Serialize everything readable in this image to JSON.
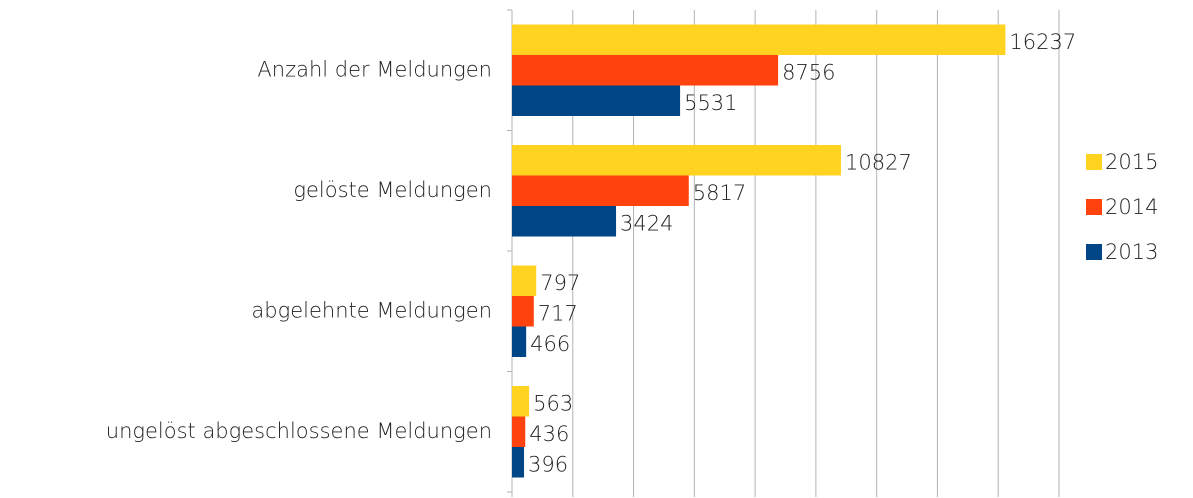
{
  "chart_data": {
    "type": "bar",
    "orientation": "horizontal",
    "categories": [
      "Anzahl der Meldungen",
      "gelöste Meldungen",
      "abgelehnte Meldungen",
      "ungelöst abgeschlossene Meldungen"
    ],
    "series": [
      {
        "name": "2015",
        "color": "#ffd320",
        "values": [
          16237,
          10827,
          797,
          563
        ]
      },
      {
        "name": "2014",
        "color": "#ff420e",
        "values": [
          8756,
          5817,
          717,
          436
        ]
      },
      {
        "name": "2013",
        "color": "#004586",
        "values": [
          5531,
          3424,
          466,
          396
        ]
      }
    ],
    "xlim": [
      0,
      18000
    ],
    "xticks": [
      0,
      2000,
      4000,
      6000,
      8000,
      10000,
      12000,
      14000,
      16000,
      18000
    ],
    "grid": true,
    "legend": "right"
  }
}
